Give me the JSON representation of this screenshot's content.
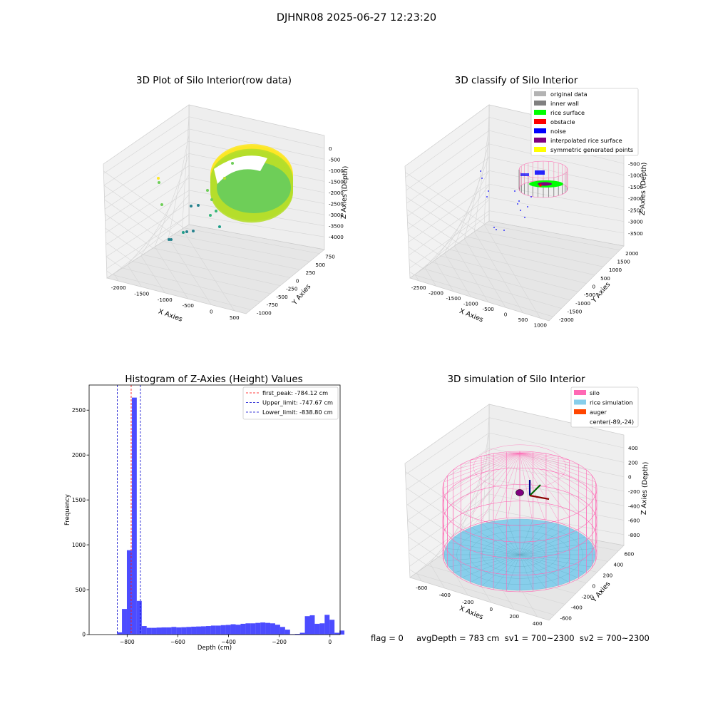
{
  "suptitle": "DJHNR08 2025-06-27 12:23:20",
  "footer_text": "flag = 0     avgDepth = 783 cm  sv1 = 700~2300  sv2 = 700~2300",
  "chart_data": [
    {
      "type": "scatter3d",
      "title": "3D Plot of Silo Interior(row data)",
      "xlabel": "X Axies",
      "ylabel": "Y Axies",
      "zlabel": "Z Axies (Depth)",
      "xticks": [
        "-2000",
        "-1500",
        "-1000",
        "-500",
        "0",
        "500"
      ],
      "yticks": [
        "-1000",
        "-750",
        "-500",
        "-250",
        "0",
        "250",
        "500",
        "750"
      ],
      "zticks": [
        "0",
        "-500",
        "-1000",
        "-1500",
        "-2000",
        "-2500",
        "-3000",
        "-3500",
        "-4000"
      ],
      "colormap": "viridis",
      "description_colors": [
        "#fde725",
        "#b5de2b",
        "#6ece58",
        "#35b779",
        "#1f9e89",
        "#26828e"
      ]
    },
    {
      "type": "scatter3d",
      "title": "3D classify of Silo Interior",
      "xlabel": "X Axies",
      "ylabel": "Y Axies",
      "zlabel": "Z Axies (Depth)",
      "xticks": [
        "-2500",
        "-2000",
        "-1500",
        "-1000",
        "-500",
        "0",
        "500",
        "1000"
      ],
      "yticks": [
        "-2000",
        "-1500",
        "-1000",
        "-500",
        "0",
        "500",
        "1000",
        "1500",
        "2000"
      ],
      "zticks": [
        "0",
        "-500",
        "-1000",
        "-1500",
        "-2000",
        "-2500",
        "-3000",
        "-3500"
      ],
      "legend": [
        {
          "label": "original data",
          "color": "#b3b3b3"
        },
        {
          "label": "inner wall",
          "color": "#808080"
        },
        {
          "label": "rice surface",
          "color": "#00ff00"
        },
        {
          "label": "obstacle",
          "color": "#ff0000"
        },
        {
          "label": "noise",
          "color": "#0000ff"
        },
        {
          "label": "interpolated rice surface",
          "color": "#800080"
        },
        {
          "label": "symmetric generated points",
          "color": "#ffff00"
        }
      ],
      "legend_loc": "upper right"
    },
    {
      "type": "bar",
      "title": "Histogram of Z-Axies (Height) Values",
      "xlabel": "Depth (cm)",
      "ylabel": "Frequency",
      "xlim": [
        -950,
        40
      ],
      "ylim": [
        0,
        2780
      ],
      "xticks": [
        -800,
        -600,
        -400,
        -200,
        0
      ],
      "yticks": [
        0,
        500,
        1000,
        1500,
        2000,
        2500
      ],
      "bin_width": 19.5,
      "bin_start": -840,
      "values": [
        25,
        285,
        940,
        2640,
        375,
        95,
        75,
        75,
        78,
        80,
        80,
        85,
        80,
        82,
        85,
        88,
        90,
        92,
        95,
        100,
        100,
        105,
        108,
        115,
        110,
        120,
        125,
        125,
        130,
        135,
        130,
        125,
        110,
        85,
        55,
        5,
        8,
        20,
        205,
        215,
        120,
        125,
        220,
        165,
        20,
        45
      ],
      "bar_color": "#0000ff",
      "bar_alpha": 0.7,
      "vlines": [
        {
          "label": "first_peak: -784.12 cm",
          "x": -784.12,
          "color": "#ff0000"
        },
        {
          "label": "Upper_limit: -747.67 cm",
          "x": -747.67,
          "color": "#0000cc"
        },
        {
          "label": "Lower_limit: -838.80 cm",
          "x": -838.8,
          "color": "#0000cc"
        }
      ],
      "legend_loc": "upper right"
    },
    {
      "type": "surface3d",
      "title": "3D simulation of Silo Interior",
      "xlabel": "X Axies",
      "ylabel": "Y Axies",
      "zlabel": "Z Axies (Depth)",
      "xticks": [
        "-600",
        "-400",
        "-200",
        "0",
        "200",
        "400"
      ],
      "yticks": [
        "-600",
        "-400",
        "-200",
        "0",
        "200",
        "400",
        "600"
      ],
      "zticks": [
        "400",
        "200",
        "0",
        "-200",
        "-400",
        "-600",
        "-800"
      ],
      "legend": [
        {
          "label": "silo",
          "color": "#ff69b4"
        },
        {
          "label": "rice simulation",
          "color": "#87ceeb"
        },
        {
          "label": "auger",
          "color": "#ff4500"
        },
        {
          "label": "center(-89,-24)",
          "color": ""
        }
      ],
      "legend_loc": "upper right"
    }
  ]
}
